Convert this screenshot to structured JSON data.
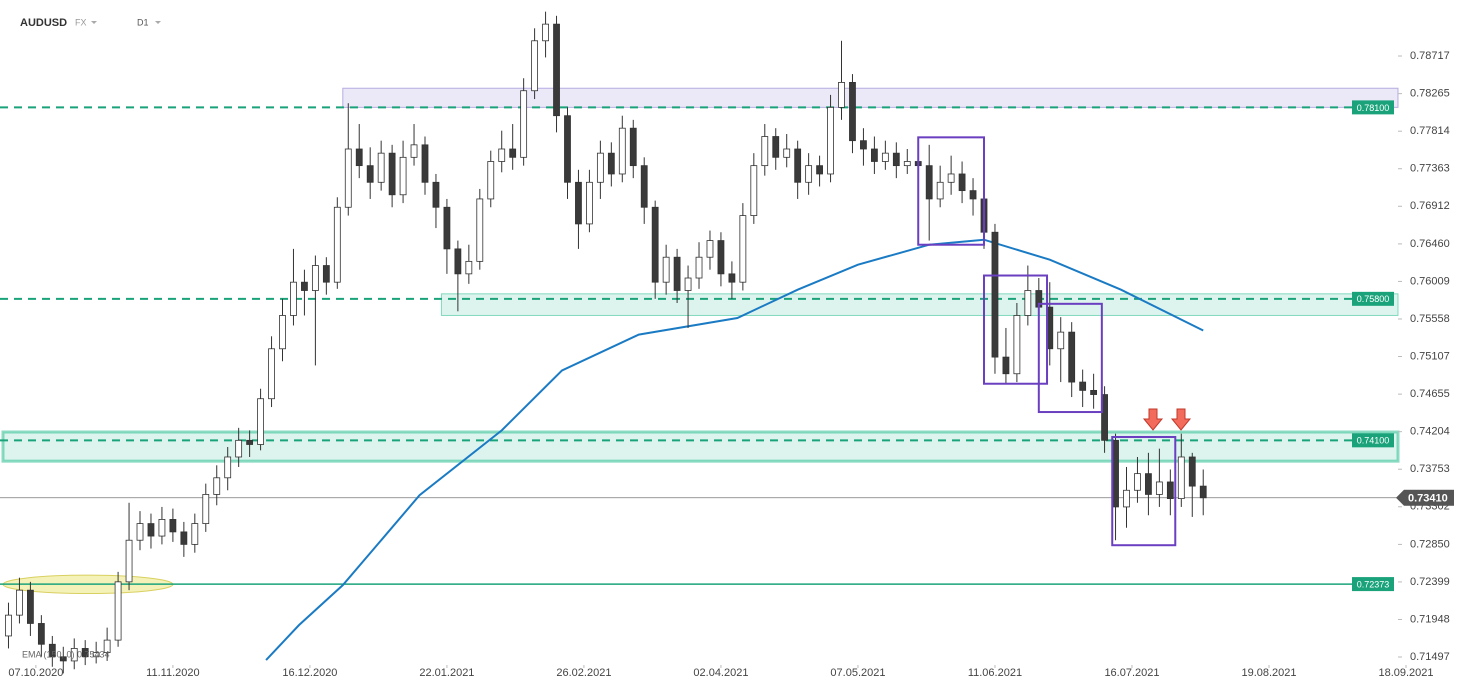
{
  "header": {
    "symbol": "AUDUSD",
    "market": "FX",
    "interval": "D1"
  },
  "chart_data": {
    "type": "candlestick",
    "xlim": [
      0,
      256
    ],
    "ylim": [
      0.71401,
      0.7939
    ],
    "xticks": [
      {
        "value": 6,
        "label": "07.10.2020"
      },
      {
        "value": 31,
        "label": "11.11.2020"
      },
      {
        "value": 56,
        "label": "16.12.2020"
      },
      {
        "value": 81,
        "label": "22.01.2021"
      },
      {
        "value": 106,
        "label": "26.02.2021"
      },
      {
        "value": 131,
        "label": "02.04.2021"
      },
      {
        "value": 156,
        "label": "07.05.2021"
      },
      {
        "value": 181,
        "label": "11.06.2021"
      },
      {
        "value": 206,
        "label": "16.07.2021"
      },
      {
        "value": 231,
        "label": "19.08.2021"
      },
      {
        "value": 256,
        "label": "18.09.2021"
      }
    ],
    "yticks": [
      0.78717,
      0.78265,
      0.77814,
      0.77363,
      0.76912,
      {
        "value": 0.7646,
        "label": "0.76460"
      },
      0.76009,
      0.75558,
      0.75107,
      0.74655,
      0.74204,
      0.73753,
      0.73302,
      {
        "value": 0.7285,
        "label": "0.72850"
      },
      0.72399,
      0.71948,
      0.71497
    ],
    "x": [
      1,
      3,
      5,
      7,
      9,
      11,
      13,
      15,
      17,
      19,
      21,
      23,
      25,
      27,
      29,
      31,
      33,
      35,
      37,
      39,
      41,
      43,
      45,
      47,
      49,
      51,
      53,
      55,
      57,
      59,
      61,
      63,
      65,
      67,
      69,
      71,
      73,
      75,
      77,
      79,
      81,
      83,
      85,
      87,
      89,
      91,
      93,
      95,
      97,
      99,
      101,
      103,
      105,
      107,
      109,
      111,
      113,
      115,
      117,
      119,
      121,
      123,
      125,
      127,
      129,
      131,
      133,
      135,
      137,
      139,
      141,
      143,
      145,
      147,
      149,
      151,
      153,
      155,
      157,
      159,
      161,
      163,
      165,
      167,
      169,
      171,
      173,
      175,
      177,
      179,
      181,
      183,
      185,
      187,
      189,
      191,
      193,
      195,
      197,
      199,
      201,
      203,
      205,
      207,
      209,
      211,
      213,
      215,
      217,
      219
    ],
    "open": [
      0.7175,
      0.72,
      0.723,
      0.719,
      0.7165,
      0.715,
      0.7145,
      0.716,
      0.715,
      0.7155,
      0.717,
      0.724,
      0.729,
      0.731,
      0.7295,
      0.7315,
      0.73,
      0.7285,
      0.731,
      0.7345,
      0.7365,
      0.739,
      0.741,
      0.7405,
      0.746,
      0.752,
      0.756,
      0.76,
      0.759,
      0.762,
      0.76,
      0.769,
      0.776,
      0.774,
      0.772,
      0.7755,
      0.7705,
      0.775,
      0.7765,
      0.772,
      0.769,
      0.764,
      0.761,
      0.7625,
      0.77,
      0.7745,
      0.776,
      0.775,
      0.783,
      0.789,
      0.791,
      0.78,
      0.772,
      0.767,
      0.772,
      0.7755,
      0.773,
      0.7785,
      0.774,
      0.769,
      0.76,
      0.763,
      0.759,
      0.7605,
      0.763,
      0.765,
      0.761,
      0.76,
      0.768,
      0.774,
      0.7775,
      0.775,
      0.776,
      0.772,
      0.774,
      0.773,
      0.781,
      0.784,
      0.777,
      0.776,
      0.7745,
      0.7755,
      0.774,
      0.7745,
      0.774,
      0.77,
      0.772,
      0.773,
      0.771,
      0.77,
      0.766,
      0.751,
      0.749,
      0.756,
      0.759,
      0.757,
      0.752,
      0.754,
      0.748,
      0.747,
      0.7465,
      0.741,
      0.733,
      0.735,
      0.737,
      0.7345,
      0.736,
      0.734,
      0.739,
      0.7355
    ],
    "high": [
      0.7215,
      0.7245,
      0.724,
      0.72,
      0.7175,
      0.7162,
      0.7172,
      0.717,
      0.7168,
      0.7185,
      0.7252,
      0.7335,
      0.7325,
      0.7322,
      0.733,
      0.7328,
      0.7312,
      0.7322,
      0.7358,
      0.738,
      0.7402,
      0.7425,
      0.7422,
      0.7472,
      0.7535,
      0.758,
      0.764,
      0.7615,
      0.7632,
      0.763,
      0.7702,
      0.7815,
      0.779,
      0.7762,
      0.777,
      0.7765,
      0.777,
      0.779,
      0.7775,
      0.773,
      0.77,
      0.765,
      0.7645,
      0.7712,
      0.7758,
      0.7782,
      0.779,
      0.7845,
      0.7905,
      0.7925,
      0.792,
      0.781,
      0.7735,
      0.7735,
      0.777,
      0.7768,
      0.78,
      0.7795,
      0.775,
      0.7698,
      0.7645,
      0.764,
      0.762,
      0.7648,
      0.7662,
      0.766,
      0.7625,
      0.7695,
      0.7755,
      0.779,
      0.7785,
      0.7778,
      0.777,
      0.7755,
      0.7752,
      0.7825,
      0.789,
      0.785,
      0.7785,
      0.7775,
      0.777,
      0.7768,
      0.776,
      0.777,
      0.7765,
      0.774,
      0.7752,
      0.7745,
      0.7725,
      0.7712,
      0.767,
      0.7545,
      0.7575,
      0.762,
      0.7605,
      0.76,
      0.7558,
      0.7552,
      0.7495,
      0.749,
      0.7475,
      0.7418,
      0.7378,
      0.739,
      0.7395,
      0.74,
      0.7375,
      0.7418,
      0.7395,
      0.7375
    ],
    "low": [
      0.716,
      0.719,
      0.7175,
      0.715,
      0.7138,
      0.713,
      0.7135,
      0.714,
      0.7142,
      0.7145,
      0.7162,
      0.723,
      0.7278,
      0.728,
      0.7285,
      0.7288,
      0.727,
      0.7275,
      0.73,
      0.7332,
      0.735,
      0.7378,
      0.739,
      0.7398,
      0.745,
      0.7505,
      0.7548,
      0.756,
      0.75,
      0.7585,
      0.7592,
      0.768,
      0.7725,
      0.77,
      0.771,
      0.769,
      0.7695,
      0.774,
      0.7705,
      0.7665,
      0.761,
      0.7565,
      0.7598,
      0.7615,
      0.769,
      0.7732,
      0.7735,
      0.774,
      0.782,
      0.787,
      0.778,
      0.77,
      0.764,
      0.766,
      0.77,
      0.7715,
      0.772,
      0.7725,
      0.767,
      0.758,
      0.7585,
      0.7575,
      0.7545,
      0.7592,
      0.7615,
      0.7595,
      0.758,
      0.759,
      0.767,
      0.7728,
      0.7735,
      0.7738,
      0.77,
      0.7705,
      0.7715,
      0.772,
      0.7795,
      0.7755,
      0.774,
      0.773,
      0.7735,
      0.7725,
      0.773,
      0.77,
      0.765,
      0.769,
      0.7705,
      0.7695,
      0.768,
      0.764,
      0.749,
      0.7478,
      0.748,
      0.7548,
      0.752,
      0.75,
      0.748,
      0.7462,
      0.745,
      0.7448,
      0.7395,
      0.729,
      0.7305,
      0.7335,
      0.732,
      0.733,
      0.732,
      0.733,
      0.7318,
      0.732
    ],
    "close": [
      0.72,
      0.723,
      0.719,
      0.7165,
      0.715,
      0.7145,
      0.716,
      0.715,
      0.7155,
      0.717,
      0.724,
      0.729,
      0.731,
      0.7295,
      0.7315,
      0.73,
      0.7285,
      0.731,
      0.7345,
      0.7365,
      0.739,
      0.741,
      0.7405,
      0.746,
      0.752,
      0.756,
      0.76,
      0.759,
      0.762,
      0.76,
      0.769,
      0.776,
      0.774,
      0.772,
      0.7755,
      0.7705,
      0.775,
      0.7765,
      0.772,
      0.769,
      0.764,
      0.761,
      0.7625,
      0.77,
      0.7745,
      0.776,
      0.775,
      0.783,
      0.789,
      0.791,
      0.78,
      0.772,
      0.767,
      0.772,
      0.7755,
      0.773,
      0.7785,
      0.774,
      0.769,
      0.76,
      0.763,
      0.759,
      0.7605,
      0.763,
      0.765,
      0.761,
      0.76,
      0.768,
      0.774,
      0.7775,
      0.775,
      0.776,
      0.772,
      0.774,
      0.773,
      0.781,
      0.784,
      0.777,
      0.776,
      0.7745,
      0.7755,
      0.774,
      0.7745,
      0.774,
      0.77,
      0.772,
      0.773,
      0.771,
      0.77,
      0.766,
      0.751,
      0.749,
      0.756,
      0.759,
      0.757,
      0.752,
      0.754,
      0.748,
      0.747,
      0.7465,
      0.741,
      0.733,
      0.735,
      0.737,
      0.7345,
      0.736,
      0.734,
      0.739,
      0.7355,
      0.7341
    ],
    "ema": {
      "name": "EMA (150, 0) 0.75434",
      "color": "#1a7bc4",
      "x": [
        48,
        54,
        62,
        76,
        91,
        102,
        116,
        134,
        145,
        156,
        169,
        179,
        191,
        204,
        219
      ],
      "values": [
        0.7146,
        0.7188,
        0.7236,
        0.7344,
        0.7422,
        0.7494,
        0.7537,
        0.7557,
        0.7591,
        0.7621,
        0.7645,
        0.7651,
        0.7627,
        0.7591,
        0.7542
      ]
    },
    "levels": [
      {
        "value": 0.781,
        "label": "0.78100"
      },
      {
        "value": 0.758,
        "label": "0.75800"
      },
      {
        "value": 0.741,
        "label": "0.74100"
      },
      {
        "value": 0.72373,
        "label": "0.72373"
      }
    ],
    "level_color": "#1aa37a",
    "last_price": {
      "value": 0.7341,
      "label": "0.73410"
    },
    "zones": [
      {
        "x": [
          62,
          256
        ],
        "y": [
          0.781,
          0.7833
        ],
        "color": "#8e7fd0"
      },
      {
        "x": [
          80,
          256
        ],
        "y": [
          0.756,
          0.7586
        ],
        "color": "#3cc39a"
      },
      {
        "x": [
          0,
          256
        ],
        "y": [
          0.7385,
          0.742
        ],
        "color": "#3cc39a"
      }
    ],
    "boxes": [
      {
        "x": [
          167,
          179
        ],
        "y": [
          0.7645,
          0.7774
        ]
      },
      {
        "x": [
          179,
          190.5
        ],
        "y": [
          0.7478,
          0.7608
        ]
      },
      {
        "x": [
          189,
          200.5
        ],
        "y": [
          0.7444,
          0.7574
        ]
      },
      {
        "x": [
          202.4,
          213.9
        ],
        "y": [
          0.7284,
          0.7414
        ]
      }
    ],
    "box_color": "#6a3fc0",
    "highlight": {
      "x": [
        0,
        31
      ],
      "y": [
        0.7226,
        0.7248
      ]
    }
  }
}
